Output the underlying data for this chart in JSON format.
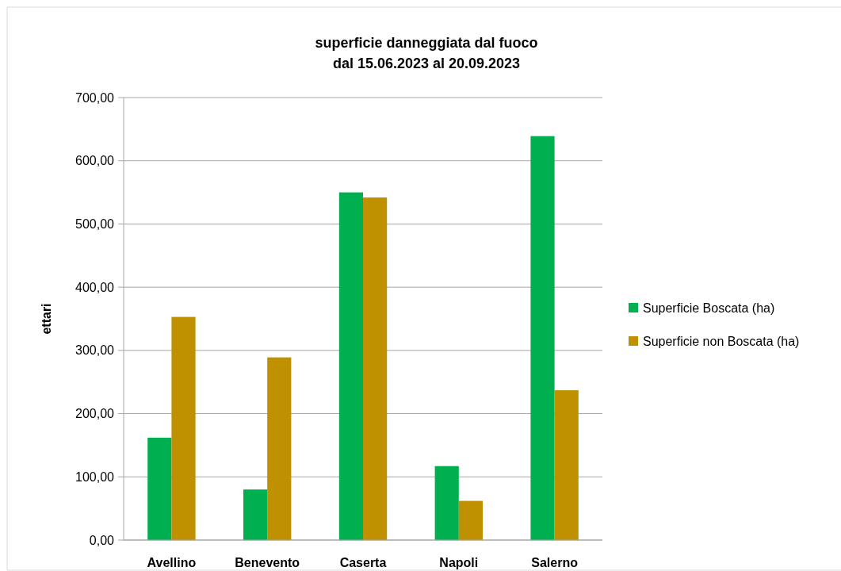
{
  "chart_data": {
    "type": "bar",
    "title": "superficie danneggiata dal fuoco\ndal  15.06.2023 al  20.09.2023",
    "ylabel": "ettari",
    "categories": [
      "Avellino",
      "Benevento",
      "Caserta",
      "Napoli",
      "Salerno"
    ],
    "series": [
      {
        "name": "Superficie Boscata (ha)",
        "color": "#00b050",
        "values": [
          162,
          80,
          550,
          117,
          639
        ]
      },
      {
        "name": "Superficie non Boscata (ha)",
        "color": "#bf9000",
        "values": [
          353,
          289,
          542,
          62,
          237
        ]
      }
    ],
    "ylim": [
      0,
      700
    ],
    "yticks": [
      {
        "value": 0,
        "label": "0,00"
      },
      {
        "value": 100,
        "label": "100,00"
      },
      {
        "value": 200,
        "label": "200,00"
      },
      {
        "value": 300,
        "label": "300,00"
      },
      {
        "value": 400,
        "label": "400,00"
      },
      {
        "value": 500,
        "label": "500,00"
      },
      {
        "value": 600,
        "label": "600,00"
      },
      {
        "value": 700,
        "label": "700,00"
      }
    ],
    "grid": "y",
    "legend": "right"
  }
}
